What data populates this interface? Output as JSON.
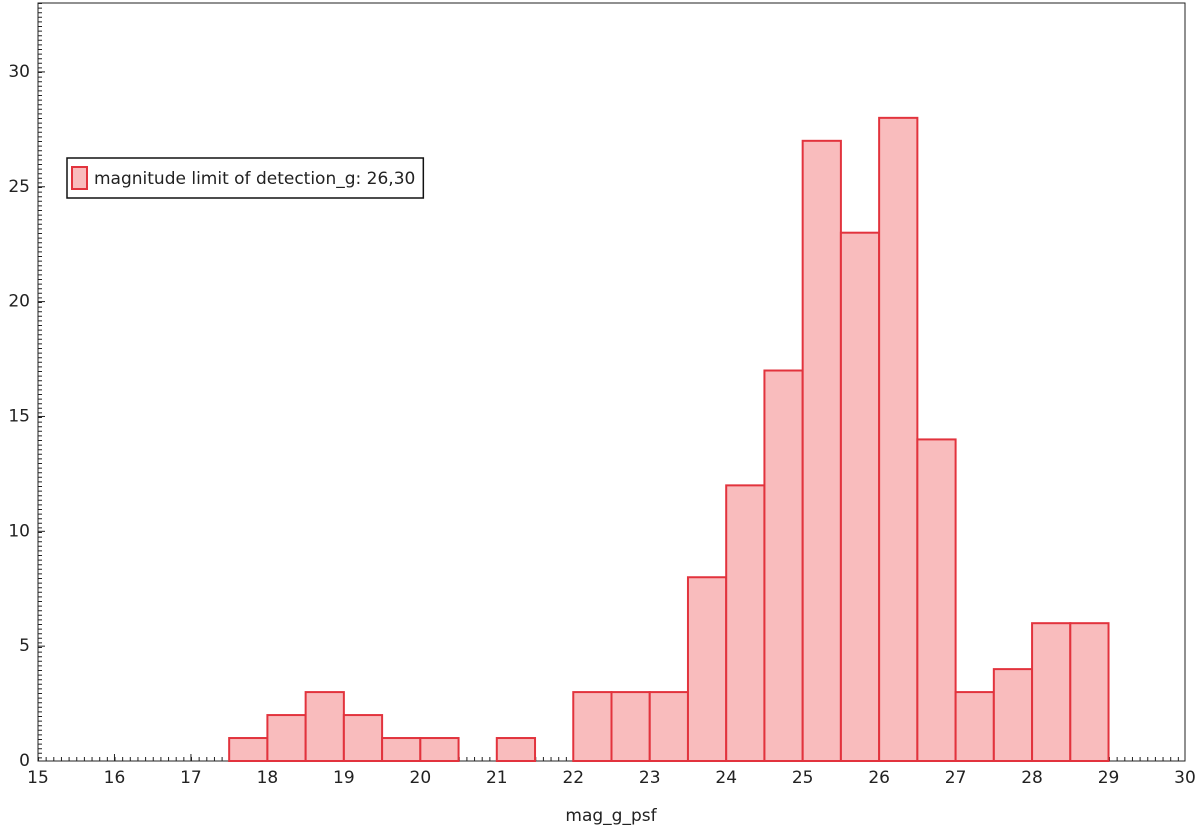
{
  "chart_data": {
    "type": "histogram",
    "xlabel": "mag_g_psf",
    "bins": [
      17.5,
      18,
      18.5,
      19,
      19.5,
      20,
      20.5,
      21,
      21.5,
      22,
      22.5,
      23,
      23.5,
      24,
      24.5,
      25,
      25.5,
      26,
      26.5,
      27,
      27.5,
      28,
      28.5,
      29
    ],
    "series": [
      {
        "name": "magnitude limit of detection_g: 26,30",
        "color": "#f9bcbd",
        "edgecolor": "#e2333d",
        "values": [
          1,
          2,
          3,
          2,
          1,
          1,
          0,
          1,
          0,
          3,
          3,
          3,
          8,
          12,
          17,
          27,
          23,
          28,
          14,
          3,
          4,
          6,
          6
        ]
      }
    ],
    "xlim": [
      15,
      30
    ],
    "xticks": [
      15,
      16,
      17,
      18,
      19,
      20,
      21,
      22,
      23,
      24,
      25,
      26,
      27,
      28,
      29,
      30
    ],
    "ylim": [
      0,
      33
    ],
    "yticks": [
      0,
      5,
      10,
      15,
      20,
      25,
      30
    ],
    "legend": "upper left"
  }
}
